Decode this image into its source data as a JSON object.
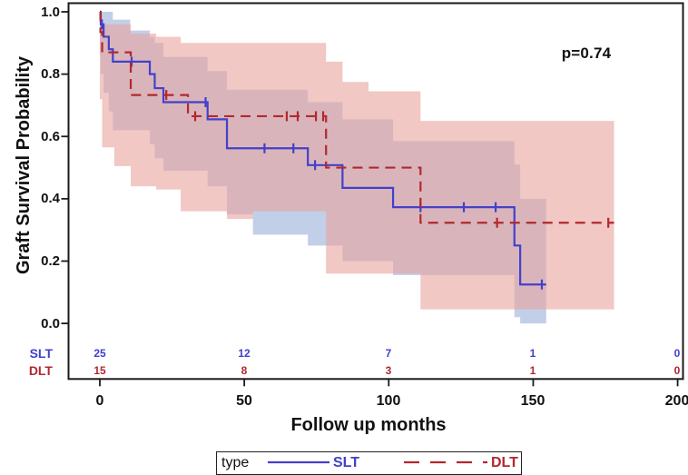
{
  "colors": {
    "slt": "#4340cb",
    "dlt": "#b2282e",
    "slt_band": "#859fd3",
    "dlt_band": "#e8a39d",
    "frame": "#1a1a1a"
  },
  "chart_data": {
    "type": "line",
    "subtype": "kaplan-meier-step-with-ci-bands",
    "title": "",
    "xlabel": "Follow up months",
    "ylabel": "Graft Survival Probability",
    "annotation": "p=0.74",
    "xlim": [
      -11,
      202
    ],
    "ylim": [
      0.0,
      1.0
    ],
    "x_ticks": [
      0,
      50,
      100,
      150,
      200
    ],
    "y_ticks": [
      1.0,
      0.8,
      0.6,
      0.4,
      0.2,
      0.0
    ],
    "x_tick_labels": [
      "0",
      "50",
      "100",
      "150",
      "200"
    ],
    "y_tick_labels": [
      "1.0",
      "0.8",
      "0.6",
      "0.4",
      "0.2",
      "0.0"
    ],
    "grid": false,
    "legend_position": "bottom",
    "series": [
      {
        "name": "SLT",
        "color": "#4340cb",
        "line_style": "solid",
        "steps": [
          [
            0,
            1.0
          ],
          [
            0.3,
            0.96
          ],
          [
            1.3,
            0.92
          ],
          [
            3.1,
            0.88
          ],
          [
            4.5,
            0.84
          ],
          [
            17.3,
            0.8
          ],
          [
            19,
            0.755
          ],
          [
            22,
            0.71
          ],
          [
            37.3,
            0.655
          ],
          [
            44,
            0.562
          ],
          [
            72,
            0.508
          ],
          [
            84,
            0.435
          ],
          [
            101.5,
            0.373
          ],
          [
            143.5,
            0.25
          ],
          [
            145.5,
            0.125
          ]
        ],
        "end_month": 154.5,
        "censor_marks": [
          [
            0.7,
            0.96
          ],
          [
            11,
            0.84
          ],
          [
            36.6,
            0.71
          ],
          [
            57,
            0.562
          ],
          [
            67,
            0.562
          ],
          [
            74.5,
            0.508
          ],
          [
            111,
            0.373
          ],
          [
            126,
            0.373
          ],
          [
            137,
            0.373
          ],
          [
            153,
            0.125
          ]
        ],
        "ci_band": [
          [
            0,
            0.86,
            1.0
          ],
          [
            0.3,
            0.8,
            1.0
          ],
          [
            1.3,
            0.74,
            1.0
          ],
          [
            3.1,
            0.68,
            1.0
          ],
          [
            4.5,
            0.62,
            0.975
          ],
          [
            10.5,
            0.62,
            0.94
          ],
          [
            17.3,
            0.575,
            0.92
          ],
          [
            19,
            0.53,
            0.9
          ],
          [
            22,
            0.49,
            0.855
          ],
          [
            37.3,
            0.44,
            0.81
          ],
          [
            44,
            0.35,
            0.75
          ],
          [
            53,
            0.285,
            0.75
          ],
          [
            72,
            0.25,
            0.71
          ],
          [
            84,
            0.2,
            0.655
          ],
          [
            101.5,
            0.155,
            0.585
          ],
          [
            143.5,
            0.02,
            0.51
          ],
          [
            145.5,
            0.0,
            0.4
          ]
        ],
        "band_color": "#859fd3",
        "band_opacity": 0.5,
        "at_risk": [
          25,
          12,
          7,
          1,
          0
        ]
      },
      {
        "name": "DLT",
        "color": "#b2282e",
        "line_style": "dashed",
        "steps": [
          [
            0,
            1.0
          ],
          [
            0.2,
            0.935
          ],
          [
            0.8,
            0.87
          ],
          [
            10.7,
            0.733
          ],
          [
            30.5,
            0.665
          ],
          [
            78.3,
            0.5
          ],
          [
            111,
            0.323
          ]
        ],
        "end_month": 178,
        "censor_marks": [
          [
            23,
            0.733
          ],
          [
            33,
            0.665
          ],
          [
            64.7,
            0.665
          ],
          [
            68.5,
            0.665
          ],
          [
            74.8,
            0.665
          ],
          [
            77.3,
            0.665
          ],
          [
            137.5,
            0.323
          ],
          [
            176,
            0.323
          ]
        ],
        "ci_band": [
          [
            0,
            0.72,
            1.0
          ],
          [
            0.8,
            0.565,
            0.96
          ],
          [
            5,
            0.505,
            0.96
          ],
          [
            10.7,
            0.44,
            0.93
          ],
          [
            19.5,
            0.43,
            0.92
          ],
          [
            28,
            0.36,
            0.9
          ],
          [
            44,
            0.335,
            0.9
          ],
          [
            53,
            0.36,
            0.9
          ],
          [
            78.3,
            0.16,
            0.84
          ],
          [
            84,
            0.16,
            0.775
          ],
          [
            93,
            0.16,
            0.745
          ],
          [
            111,
            0.045,
            0.65
          ]
        ],
        "band_color": "#e8a39d",
        "band_opacity": 0.6,
        "at_risk": [
          15,
          8,
          3,
          1,
          0
        ]
      }
    ]
  },
  "risk_table": {
    "rows": [
      {
        "label": "SLT",
        "counts": [
          "25",
          "12",
          "7",
          "1",
          "0"
        ]
      },
      {
        "label": "DLT",
        "counts": [
          "15",
          "8",
          "3",
          "1",
          "0"
        ]
      }
    ]
  },
  "legend": {
    "title": "type",
    "items": [
      {
        "label": "SLT",
        "style": "solid"
      },
      {
        "label": "DLT",
        "style": "dashed"
      }
    ]
  }
}
